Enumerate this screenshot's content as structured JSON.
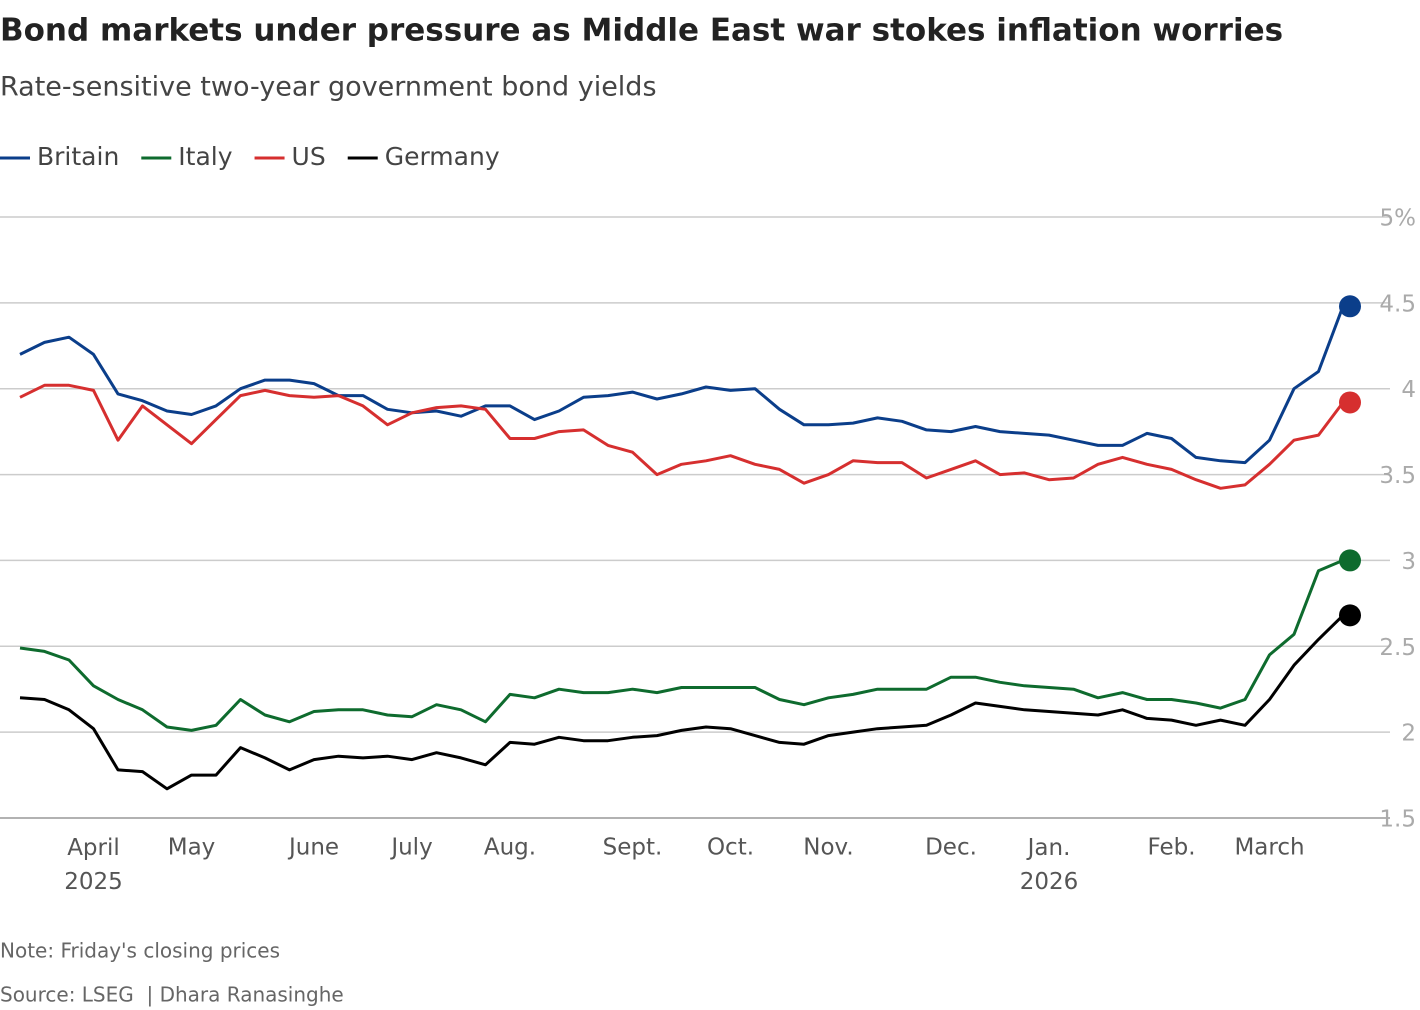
{
  "chart_data": {
    "type": "line",
    "title": "Bond markets under pressure as Middle East war stokes inflation worries",
    "subtitle": "Rate-sensitive two-year government bond yields",
    "note": "Note: Friday's closing prices",
    "source": "Source: LSEG  | Dhara Ranasinghe",
    "categories": [
      null,
      null,
      null,
      "April 2025",
      null,
      null,
      null,
      "May",
      null,
      null,
      null,
      null,
      "June",
      null,
      null,
      null,
      "July",
      null,
      null,
      null,
      "Aug.",
      null,
      null,
      null,
      null,
      "Sept.",
      null,
      null,
      null,
      "Oct.",
      null,
      null,
      null,
      "Nov.",
      null,
      null,
      null,
      null,
      "Dec.",
      null,
      null,
      null,
      "Jan. 2026",
      null,
      null,
      null,
      null,
      "Feb.",
      null,
      null,
      null,
      "March",
      null,
      null,
      null
    ],
    "series": [
      {
        "name": "Britain",
        "color": "#0b3e8a",
        "values": [
          4.2,
          4.27,
          4.3,
          4.2,
          3.97,
          3.93,
          3.87,
          3.85,
          3.9,
          4.0,
          4.05,
          4.05,
          4.03,
          3.96,
          3.96,
          3.88,
          3.86,
          3.87,
          3.84,
          3.9,
          3.9,
          3.82,
          3.87,
          3.95,
          3.96,
          3.98,
          3.94,
          3.97,
          4.01,
          3.99,
          4.0,
          3.88,
          3.79,
          3.79,
          3.8,
          3.83,
          3.81,
          3.76,
          3.75,
          3.78,
          3.75,
          3.74,
          3.73,
          3.7,
          3.67,
          3.67,
          3.74,
          3.71,
          3.6,
          3.58,
          3.57,
          3.7,
          4.0,
          4.1,
          4.48
        ]
      },
      {
        "name": "Italy",
        "color": "#0e6b2e",
        "values": [
          2.49,
          2.47,
          2.42,
          2.27,
          2.19,
          2.13,
          2.03,
          2.01,
          2.04,
          2.19,
          2.1,
          2.06,
          2.12,
          2.13,
          2.13,
          2.1,
          2.09,
          2.16,
          2.13,
          2.06,
          2.22,
          2.2,
          2.25,
          2.23,
          2.23,
          2.25,
          2.23,
          2.26,
          2.26,
          2.26,
          2.26,
          2.19,
          2.16,
          2.2,
          2.22,
          2.25,
          2.25,
          2.25,
          2.32,
          2.32,
          2.29,
          2.27,
          2.26,
          2.25,
          2.2,
          2.23,
          2.19,
          2.19,
          2.17,
          2.14,
          2.19,
          2.45,
          2.57,
          2.94,
          3.0
        ]
      },
      {
        "name": "US",
        "color": "#d62f2f",
        "values": [
          3.95,
          4.02,
          4.02,
          3.99,
          3.7,
          3.9,
          3.79,
          3.68,
          3.82,
          3.96,
          3.99,
          3.96,
          3.95,
          3.96,
          3.9,
          3.79,
          3.86,
          3.89,
          3.9,
          3.88,
          3.71,
          3.71,
          3.75,
          3.76,
          3.67,
          3.63,
          3.5,
          3.56,
          3.58,
          3.61,
          3.56,
          3.53,
          3.45,
          3.5,
          3.58,
          3.57,
          3.57,
          3.48,
          3.53,
          3.58,
          3.5,
          3.51,
          3.47,
          3.48,
          3.56,
          3.6,
          3.56,
          3.53,
          3.47,
          3.42,
          3.44,
          3.56,
          3.7,
          3.73,
          3.92
        ]
      },
      {
        "name": "Germany",
        "color": "#000000",
        "values": [
          2.2,
          2.19,
          2.13,
          2.02,
          1.78,
          1.77,
          1.67,
          1.75,
          1.75,
          1.91,
          1.85,
          1.78,
          1.84,
          1.86,
          1.85,
          1.86,
          1.84,
          1.88,
          1.85,
          1.81,
          1.94,
          1.93,
          1.97,
          1.95,
          1.95,
          1.97,
          1.98,
          2.01,
          2.03,
          2.02,
          1.98,
          1.94,
          1.93,
          1.98,
          2.0,
          2.02,
          2.03,
          2.04,
          2.1,
          2.17,
          2.15,
          2.13,
          2.12,
          2.11,
          2.1,
          2.13,
          2.08,
          2.07,
          2.04,
          2.07,
          2.04,
          2.19,
          2.39,
          2.54,
          2.68
        ]
      }
    ],
    "ylim": [
      1.5,
      5
    ],
    "yticks": [
      1.5,
      2,
      2.5,
      3,
      3.5,
      4,
      4.5,
      {
        "value": 5,
        "label": "5%"
      }
    ],
    "grid": true
  }
}
